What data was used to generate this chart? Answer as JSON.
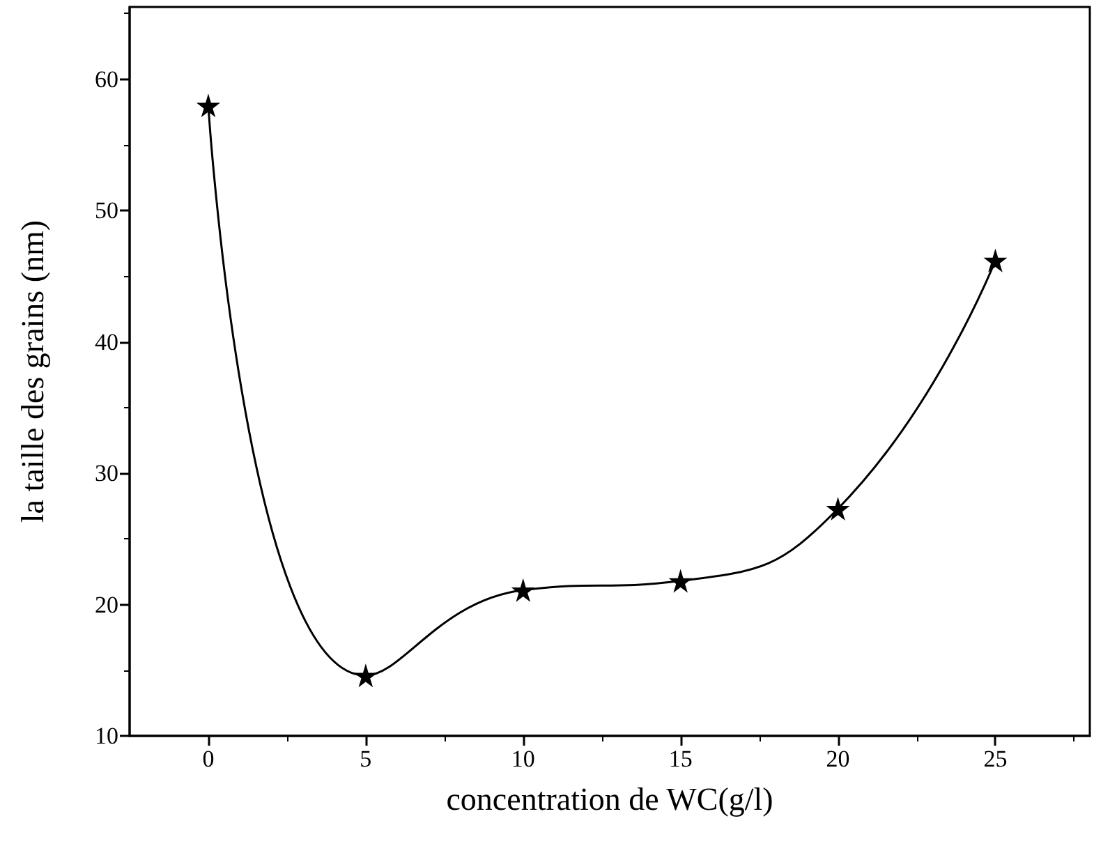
{
  "chart_data": {
    "type": "line",
    "xlabel": "concentration de WC(g/l)",
    "ylabel": "la taille des grains (nm)",
    "x": [
      0,
      5,
      10,
      15,
      20,
      25
    ],
    "series": [
      {
        "color": "#000000",
        "values": [
          58.0,
          14.6,
          21.1,
          21.8,
          27.3,
          46.2
        ]
      }
    ],
    "xlim": [
      -2.5,
      28
    ],
    "xticks": [
      0,
      5,
      10,
      15,
      20,
      25
    ],
    "ylim": [
      10,
      65.5
    ],
    "yticks": [
      10,
      20,
      30,
      40,
      50,
      60
    ],
    "grid": false,
    "marker": "star",
    "line_style": "solid"
  }
}
